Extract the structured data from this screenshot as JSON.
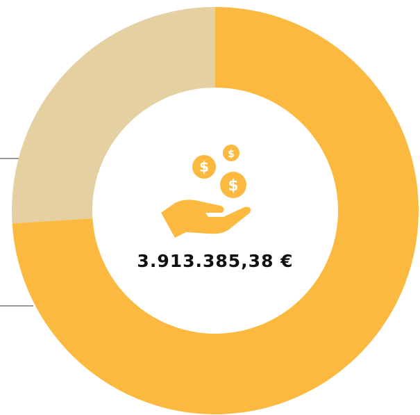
{
  "chart_data": {
    "type": "donut",
    "values": [
      74,
      26
    ],
    "colors": [
      "#fbba3f",
      "#e4d0a0"
    ],
    "center_text": "3.913.385,38 €"
  }
}
